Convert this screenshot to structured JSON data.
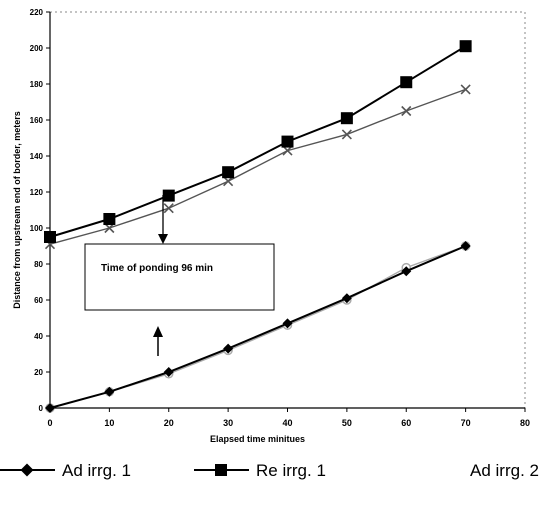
{
  "chart_data": {
    "type": "line",
    "title": "",
    "xlabel": "Elapsed time minitues",
    "ylabel": "Distance from upstream end of border, meters",
    "xlim": [
      0,
      80
    ],
    "ylim": [
      0,
      220
    ],
    "x_ticks": [
      "0",
      "10",
      "20",
      "30",
      "40",
      "50",
      "60",
      "70",
      "80"
    ],
    "y_ticks": [
      "0",
      "20",
      "40",
      "60",
      "80",
      "100",
      "120",
      "140",
      "160",
      "180",
      "200",
      "220"
    ],
    "grid": false,
    "legend_position": "bottom",
    "annotation": "Time of ponding 96  min",
    "series": [
      {
        "name": "Ad irrg. 1",
        "color": "#000000",
        "marker": "diamond",
        "x": [
          0,
          10,
          20,
          30,
          40,
          50,
          60,
          70
        ],
        "y": [
          0,
          9,
          20,
          33,
          47,
          61,
          76,
          90
        ]
      },
      {
        "name": "Re irrg. 1",
        "color": "#000000",
        "marker": "square",
        "x": [
          0,
          10,
          20,
          30,
          40,
          50,
          60,
          70
        ],
        "y": [
          95,
          105,
          118,
          131,
          148,
          161,
          181,
          201
        ]
      },
      {
        "name": "Ad irrg. 2",
        "color": "#555555",
        "marker": "x",
        "x": [
          0,
          10,
          20,
          30,
          40,
          50,
          60,
          70
        ],
        "y": [
          91,
          100,
          111,
          126,
          143,
          152,
          165,
          177
        ]
      },
      {
        "name": "",
        "color": "#aaaaaa",
        "marker": "circle",
        "x": [
          0,
          10,
          20,
          30,
          40,
          50,
          60,
          70
        ],
        "y": [
          0,
          9,
          19,
          32,
          46,
          60,
          78,
          90
        ]
      }
    ]
  }
}
